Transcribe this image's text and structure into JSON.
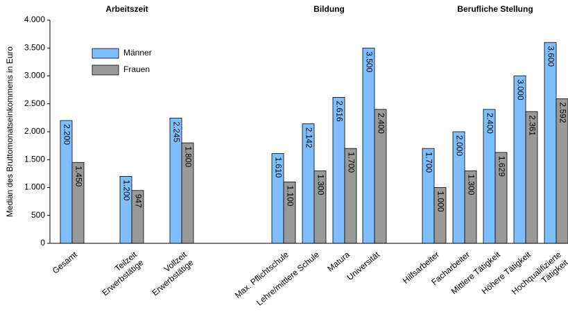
{
  "chart_data": {
    "type": "bar",
    "y_label": "Median des Bruttomonatseinkommens in Euro",
    "groups": [
      {
        "title": "Arbeitszeit",
        "members": [
          0,
          2
        ]
      },
      {
        "title": "Bildung",
        "members": [
          3,
          6
        ]
      },
      {
        "title": "Berufliche Stellung",
        "members": [
          7,
          11
        ]
      }
    ],
    "categories": [
      [
        "Gesamt"
      ],
      [
        "Teilzeit",
        "Erwerbstätige"
      ],
      [
        "Vollzeit",
        "Erwerbstätige"
      ],
      [
        "Max. Pflichtschule"
      ],
      [
        "Lehre/mittlere Schule"
      ],
      [
        "Matura"
      ],
      [
        "Universität"
      ],
      [
        "Hilfsarbeiter"
      ],
      [
        "Facharbeiter"
      ],
      [
        "Mittlere Tätigkeit"
      ],
      [
        "Höhere Tätigkeit"
      ],
      [
        "Hochqualifizierte",
        "Tätigkeit"
      ]
    ],
    "series": [
      {
        "name": "Männer",
        "color": "#80bfff",
        "values": [
          2200,
          1200,
          2245,
          1610,
          2142,
          2616,
          3500,
          1700,
          2000,
          2400,
          3000,
          3600
        ],
        "value_labels": [
          "2.200",
          "1.200",
          "2.245",
          "1.610",
          "2.142",
          "2.616",
          "3.500",
          "1.700",
          "2.000",
          "2.400",
          "3.000",
          "3.600"
        ]
      },
      {
        "name": "Frauen",
        "color": "#999999",
        "values": [
          1450,
          947,
          1800,
          1100,
          1300,
          1700,
          2400,
          1000,
          1300,
          1629,
          2361,
          2592
        ],
        "value_labels": [
          "1.450",
          "947",
          "1.800",
          "1.100",
          "1.300",
          "1.700",
          "2.400",
          "1.000",
          "1.300",
          "1.629",
          "2.361",
          "2.592"
        ]
      }
    ],
    "ylim": [
      0,
      4000
    ],
    "yticks": [
      0,
      500,
      {
        "value": 1000,
        "label": "1.000"
      },
      {
        "value": 1500,
        "label": "1.500"
      },
      {
        "value": 2000,
        "label": "2.000"
      },
      {
        "value": 2500,
        "label": "2.500"
      },
      {
        "value": 3000,
        "label": "3.000"
      },
      {
        "value": 3500,
        "label": "3.500"
      },
      {
        "value": 4000,
        "label": "4.000"
      }
    ],
    "legend": "upper left"
  }
}
